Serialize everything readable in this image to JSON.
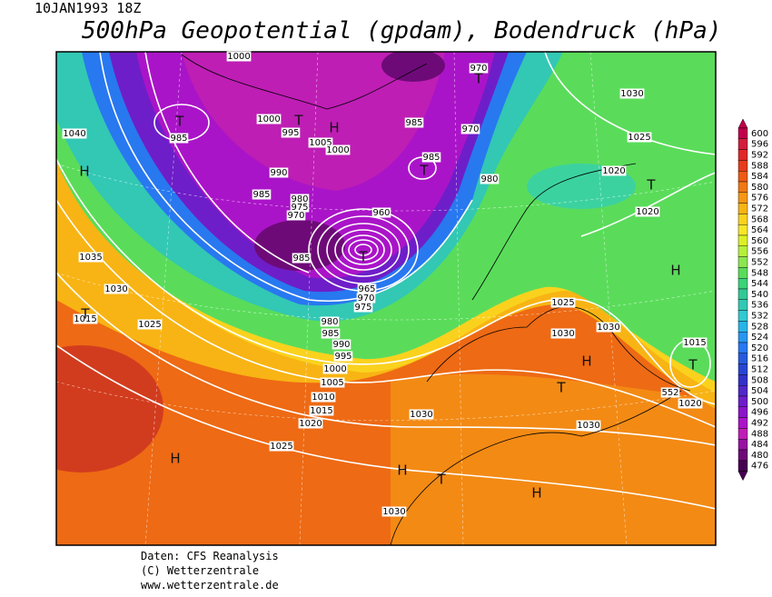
{
  "header": {
    "date": "10JAN1993 18Z",
    "title": "500hPa Geopotential (gpdam), Bodendruck (hPa)"
  },
  "footer": [
    "Daten: CFS Reanalysis",
    "(C) Wetterzentrale",
    "www.wetterzentrale.de"
  ],
  "legend": {
    "labels": [
      600,
      596,
      592,
      588,
      584,
      580,
      576,
      572,
      568,
      564,
      560,
      556,
      552,
      548,
      544,
      540,
      536,
      532,
      528,
      524,
      520,
      516,
      512,
      508,
      504,
      500,
      496,
      492,
      488,
      484,
      480,
      476
    ],
    "colors": [
      "#c0004a",
      "#d21e3c",
      "#e02828",
      "#e63c1e",
      "#ee5a14",
      "#f07814",
      "#f59614",
      "#f8b414",
      "#fad21e",
      "#f8e628",
      "#dcf028",
      "#b4f03c",
      "#8ce650",
      "#5adc5a",
      "#3cd278",
      "#32c896",
      "#32c8b4",
      "#32c8d2",
      "#28b4e6",
      "#2896f0",
      "#2878f0",
      "#285adc",
      "#2846d2",
      "#3232c8",
      "#5028c8",
      "#6e1ec8",
      "#8c14c8",
      "#aa14c8",
      "#be1eb4",
      "#9614a0",
      "#6e0a78",
      "#460050"
    ]
  },
  "isobar_labels": [
    1000,
    970,
    1030,
    1040,
    985,
    1000,
    995,
    1005,
    1000,
    985,
    970,
    1025,
    985,
    990,
    980,
    1020,
    985,
    980,
    975,
    970,
    1020,
    960,
    1035,
    985,
    1030,
    1025,
    1015,
    1025,
    980,
    985,
    990,
    995,
    1030,
    1030,
    1015,
    1000,
    1005,
    1010,
    1015,
    1020,
    1030,
    1030,
    1020,
    552,
    1025,
    1030,
    965,
    970,
    975
  ],
  "pressure_centers": [
    "T",
    "T",
    "H",
    "T",
    "T",
    "H",
    "T",
    "T",
    "H",
    "T",
    "H",
    "T",
    "T",
    "H",
    "H",
    "T",
    "H"
  ]
}
